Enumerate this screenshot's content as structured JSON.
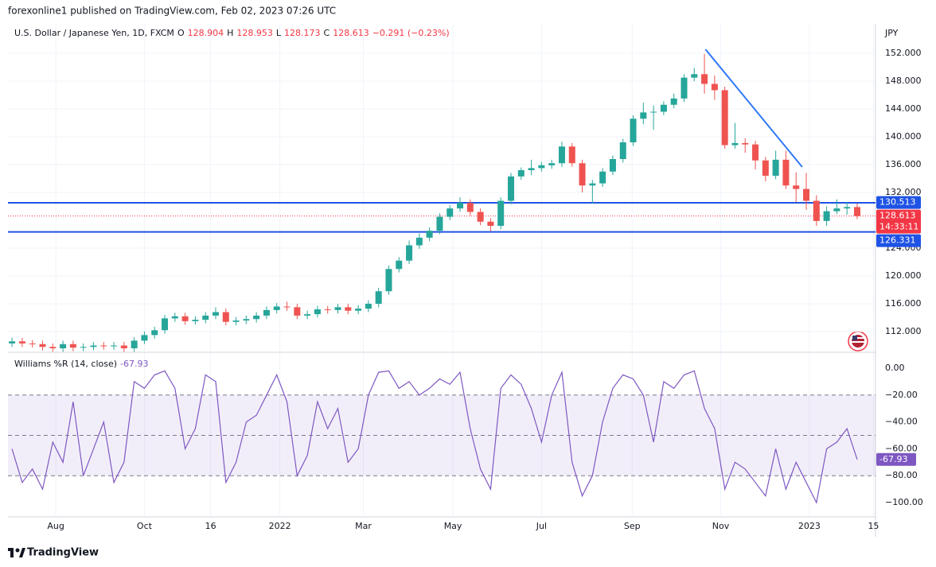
{
  "header": {
    "published": "forexonline1 published on TradingView.com, Feb 02, 2023 07:26 UTC",
    "brand": "TradingView"
  },
  "chart_data": [
    {
      "type": "candlestick",
      "title": "U.S. Dollar / Japanese Yen, 1D, FXCM",
      "legend": {
        "open_label": "O",
        "open": 128.904,
        "high_label": "H",
        "high": 128.953,
        "low_label": "L",
        "low": 128.173,
        "close_label": "C",
        "close": 128.613,
        "change": "−0.291 (−0.23%)"
      },
      "unit": "JPY",
      "up_color": "#26a69a",
      "down_color": "#ef5350",
      "open": [
        110.3,
        110.6,
        110.3,
        110.2,
        109.8,
        109.6,
        110.2,
        109.7,
        109.8,
        110.0,
        109.9,
        110.0,
        109.6,
        110.7,
        111.5,
        112.2,
        113.9,
        114.2,
        113.5,
        113.7,
        114.3,
        114.8,
        113.4,
        113.6,
        113.8,
        114.3,
        115.1,
        115.6,
        115.5,
        114.3,
        114.5,
        115.2,
        115.1,
        115.5,
        115.0,
        115.3,
        116.0,
        117.8,
        121.0,
        122.2,
        124.4,
        125.5,
        126.5,
        128.5,
        129.7,
        130.5,
        129.2,
        127.8,
        127.2,
        130.8,
        134.3,
        135.2,
        135.5,
        135.9,
        136.2,
        138.6,
        136.2,
        133.0,
        133.3,
        135.0,
        136.8,
        139.2,
        142.6,
        143.5,
        143.6,
        144.6,
        145.5,
        148.5,
        149.0,
        147.6,
        146.7,
        138.8,
        139.1,
        138.9,
        136.6,
        134.4,
        136.7,
        133.0,
        132.5,
        130.8,
        127.9,
        129.3,
        129.7,
        129.9
      ],
      "high": [
        111.1,
        111.1,
        110.8,
        110.7,
        110.3,
        110.7,
        110.7,
        110.3,
        110.5,
        110.5,
        110.5,
        110.5,
        111.2,
        112.0,
        112.7,
        114.4,
        114.7,
        114.7,
        114.2,
        114.8,
        115.5,
        115.3,
        114.1,
        114.3,
        114.8,
        115.6,
        116.1,
        116.3,
        116.0,
        115.0,
        115.7,
        115.7,
        116.0,
        116.0,
        115.8,
        116.5,
        118.3,
        121.5,
        122.7,
        125.1,
        126.1,
        127.0,
        129.0,
        130.2,
        131.3,
        131.0,
        129.7,
        128.3,
        131.3,
        134.8,
        135.6,
        136.7,
        136.4,
        136.7,
        139.3,
        139.1,
        136.7,
        133.8,
        135.5,
        137.3,
        139.7,
        143.1,
        144.9,
        144.5,
        145.1,
        146.2,
        149.0,
        149.9,
        151.9,
        148.8,
        147.2,
        142.0,
        139.8,
        139.4,
        137.1,
        138.0,
        138.0,
        134.9,
        134.8,
        131.6,
        130.0,
        131.0,
        130.6,
        130.4
      ],
      "low": [
        109.8,
        109.8,
        109.7,
        109.3,
        109.1,
        109.1,
        109.2,
        109.2,
        109.3,
        109.4,
        109.4,
        109.1,
        109.1,
        110.2,
        111.0,
        111.7,
        113.4,
        113.0,
        113.0,
        113.2,
        113.8,
        112.9,
        112.9,
        113.1,
        113.3,
        113.8,
        114.6,
        115.0,
        113.8,
        113.8,
        114.0,
        114.6,
        114.6,
        114.5,
        114.5,
        114.8,
        115.5,
        117.3,
        120.5,
        121.7,
        123.9,
        125.0,
        126.0,
        128.0,
        129.2,
        128.7,
        127.3,
        126.4,
        126.7,
        130.3,
        133.8,
        134.5,
        135.0,
        135.4,
        135.7,
        135.7,
        132.0,
        130.4,
        132.8,
        134.5,
        136.3,
        138.7,
        141.8,
        141.0,
        143.1,
        144.1,
        145.0,
        148.0,
        146.2,
        145.3,
        138.3,
        138.3,
        137.7,
        135.3,
        133.6,
        133.9,
        132.5,
        130.6,
        129.5,
        127.2,
        127.2,
        128.9,
        128.8,
        128.173
      ],
      "close": [
        110.6,
        110.3,
        110.2,
        109.8,
        109.6,
        110.2,
        109.7,
        109.8,
        110.0,
        109.9,
        110.0,
        109.6,
        110.7,
        111.5,
        112.2,
        113.9,
        114.2,
        113.5,
        113.7,
        114.3,
        114.8,
        113.4,
        113.6,
        113.8,
        114.3,
        115.1,
        115.6,
        115.5,
        114.3,
        114.5,
        115.2,
        115.1,
        115.5,
        115.0,
        115.3,
        116.0,
        117.8,
        121.0,
        122.2,
        124.4,
        125.5,
        126.5,
        128.5,
        129.7,
        130.5,
        129.2,
        127.8,
        127.2,
        130.8,
        134.3,
        135.2,
        135.5,
        135.9,
        136.2,
        138.6,
        136.2,
        133.0,
        133.3,
        135.0,
        136.8,
        139.2,
        142.6,
        143.5,
        143.6,
        144.6,
        145.5,
        148.5,
        149.0,
        147.6,
        146.7,
        138.8,
        139.1,
        138.9,
        136.6,
        134.4,
        136.7,
        133.0,
        132.5,
        130.8,
        127.9,
        129.3,
        129.7,
        129.9,
        128.613
      ],
      "xlim": [
        -0.4,
        84.8
      ],
      "xticks": [
        {
          "value": 4.3,
          "label": "Aug"
        },
        {
          "value": 13,
          "label": "Oct"
        },
        {
          "value": 19.5,
          "label": "16"
        },
        {
          "value": 26.3,
          "label": "2022"
        },
        {
          "value": 34.5,
          "label": "Mar"
        },
        {
          "value": 43.3,
          "label": "May"
        },
        {
          "value": 52,
          "label": "Jul"
        },
        {
          "value": 60.9,
          "label": "Sep"
        },
        {
          "value": 69.6,
          "label": "Nov"
        },
        {
          "value": 78.3,
          "label": "2023"
        },
        {
          "value": 84.6,
          "label": "15"
        }
      ],
      "ylim": [
        109.37,
        156.23
      ],
      "yticks": [
        {
          "value": 112,
          "label": "112.000"
        },
        {
          "value": 116,
          "label": "116.000"
        },
        {
          "value": 120,
          "label": "120.000"
        },
        {
          "value": 124,
          "label": "124.000"
        },
        {
          "value": 132,
          "label": "132.000"
        },
        {
          "value": 136,
          "label": "136.000"
        },
        {
          "value": 140,
          "label": "140.000"
        },
        {
          "value": 144,
          "label": "144.000"
        },
        {
          "value": 148,
          "label": "148.000"
        },
        {
          "value": 152,
          "label": "152.000"
        }
      ],
      "grid": true,
      "levels": [
        {
          "value": 130.513,
          "color": "#1e53e5"
        },
        {
          "value": 126.331,
          "color": "#1e53e5"
        }
      ],
      "last_price": {
        "value": 128.613,
        "countdown": "14:33:11",
        "color": "#f23645"
      },
      "trend_line": {
        "x": [
          68.1,
          77.6
        ],
        "y": [
          152.57,
          135.66
        ],
        "color": "#3179f5"
      }
    },
    {
      "type": "line",
      "title": "Williams %R (14, close)",
      "series": [
        {
          "color": "#7e57c2",
          "values": [
            -60,
            -85,
            -75,
            -90,
            -55,
            -70,
            -25,
            -80,
            -60,
            -40,
            -85,
            -70,
            -10,
            -15,
            -5,
            -2,
            -15,
            -60,
            -45,
            -5,
            -10,
            -85,
            -70,
            -40,
            -35,
            -20,
            -5,
            -25,
            -80,
            -65,
            -25,
            -45,
            -30,
            -70,
            -60,
            -20,
            -3,
            -2,
            -15,
            -10,
            -20,
            -15,
            -8,
            -12,
            -3,
            -45,
            -75,
            -90,
            -15,
            -5,
            -12,
            -30,
            -55,
            -20,
            -3,
            -70,
            -95,
            -80,
            -40,
            -15,
            -5,
            -8,
            -20,
            -55,
            -10,
            -15,
            -5,
            -2,
            -30,
            -45,
            -90,
            -70,
            -75,
            -85,
            -95,
            -60,
            -90,
            -70,
            -85,
            -100,
            -60,
            -55,
            -45,
            -67.93
          ]
        }
      ],
      "ylim": [
        -110.65,
        10.65
      ],
      "yticks": [
        {
          "value": 0,
          "label": "0.00"
        },
        {
          "value": -20,
          "label": "−20.00"
        },
        {
          "value": -40,
          "label": "−40.00"
        },
        {
          "value": -60,
          "label": "−60.00"
        },
        {
          "value": -80,
          "label": "−80.00"
        },
        {
          "value": -100,
          "label": "−100.00"
        }
      ],
      "bands": {
        "upper": -20,
        "middle": -50,
        "lower": -80
      }
    }
  ]
}
